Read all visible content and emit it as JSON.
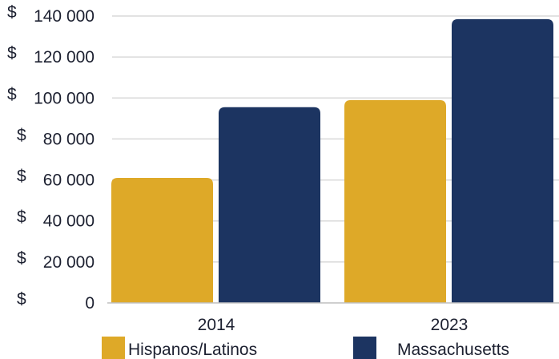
{
  "chart_data": {
    "type": "bar",
    "categories": [
      "2014",
      "2023"
    ],
    "series": [
      {
        "name": "Hispanos/Latinos",
        "values": [
          61000,
          99000
        ],
        "color": "#DEA928"
      },
      {
        "name": "Massachusetts",
        "values": [
          95500,
          138500
        ],
        "color": "#1C3461"
      }
    ],
    "currency_symbol": "$",
    "y_ticks": [
      {
        "value": 0,
        "label": "0"
      },
      {
        "value": 20000,
        "label": "20 000"
      },
      {
        "value": 40000,
        "label": "40 000"
      },
      {
        "value": 60000,
        "label": "60 000"
      },
      {
        "value": 80000,
        "label": "80 000"
      },
      {
        "value": 100000,
        "label": "100 000"
      },
      {
        "value": 120000,
        "label": "120 000"
      },
      {
        "value": 140000,
        "label": "140 000"
      }
    ],
    "ylim": [
      0,
      140000
    ],
    "grid": true,
    "gridline_color": "#D9D9D9",
    "legend_position": "bottom",
    "title": "",
    "xlabel": "",
    "ylabel": ""
  }
}
